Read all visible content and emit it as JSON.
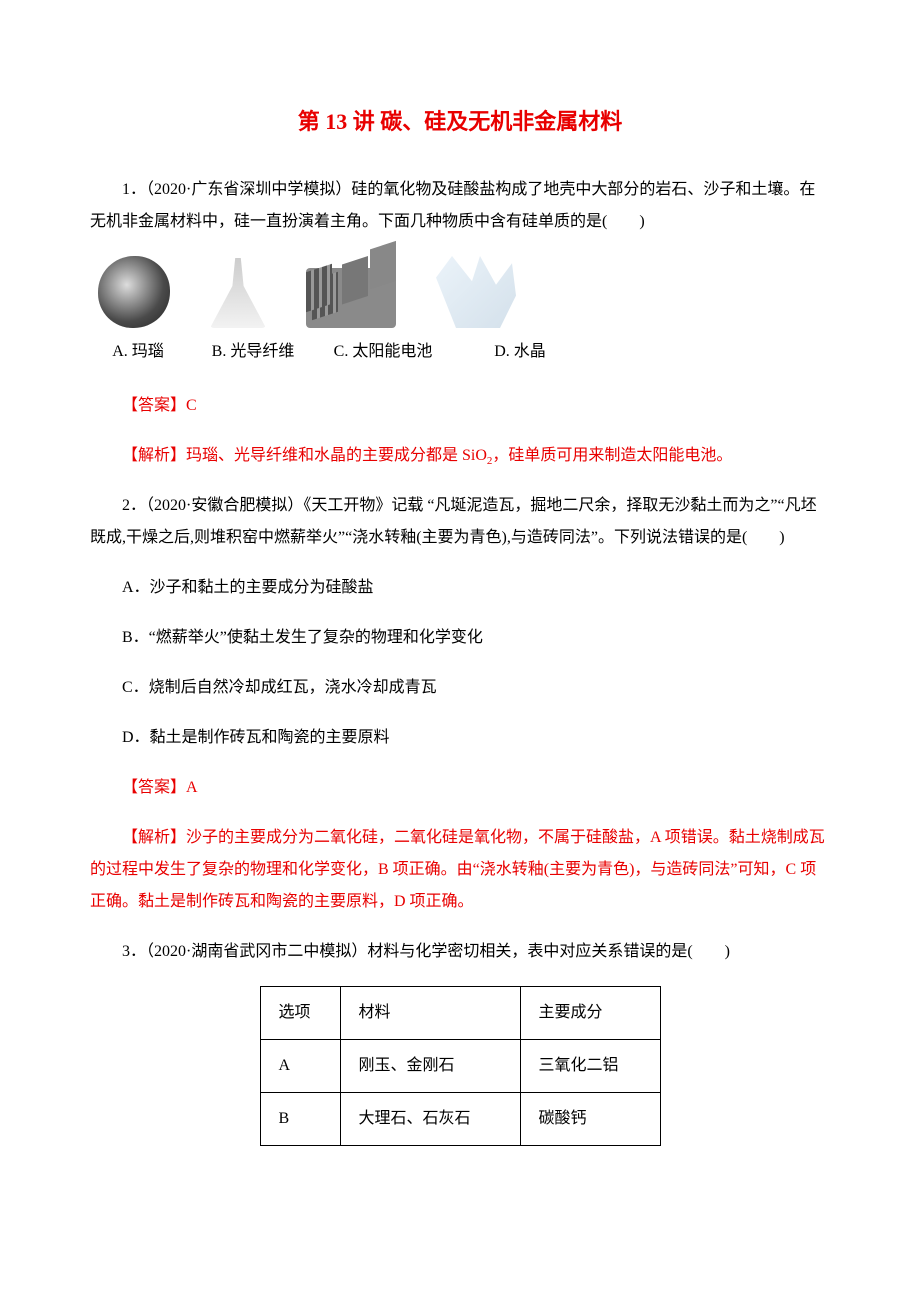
{
  "colors": {
    "red": "#e80000",
    "text": "#000000",
    "bg": "#ffffff",
    "border": "#000000"
  },
  "title": "第 13 讲 碳、硅及无机非金属材料",
  "q1": {
    "stem": "1．（2020·广东省深圳中学模拟）硅的氧化物及硅酸盐构成了地壳中大部分的岩石、沙子和土壤。在无机非金属材料中，硅一直扮演着主角。下面几种物质中含有硅单质的是(　　)",
    "labelA": "A. 玛瑙",
    "labelB": "B. 光导纤维",
    "labelC": "C. 太阳能电池",
    "labelD": "D. 水晶",
    "answerLabel": "【答案】",
    "answer": "C",
    "explainLabel": "【解析】",
    "explain_pre": "玛瑙、光导纤维和水晶的主要成分都是 SiO",
    "explain_post": "，硅单质可用来制造太阳能电池。"
  },
  "q2": {
    "stem": "2．（2020·安徽合肥模拟）《天工开物》记载 “凡埏泥造瓦，掘地二尺余，择取无沙黏土而为之”“凡坯既成,干燥之后,则堆积窑中燃薪举火”“浇水转釉(主要为青色),与造砖同法”。下列说法错误的是(　　)",
    "optA": "A．沙子和黏土的主要成分为硅酸盐",
    "optB": "B．“燃薪举火”使黏土发生了复杂的物理和化学变化",
    "optC": "C．烧制后自然冷却成红瓦，浇水冷却成青瓦",
    "optD": "D．黏土是制作砖瓦和陶瓷的主要原料",
    "answerLabel": "【答案】",
    "answer": "A",
    "explainLabel": "【解析】",
    "explain": "沙子的主要成分为二氧化硅，二氧化硅是氧化物，不属于硅酸盐，A 项错误。黏土烧制成瓦的过程中发生了复杂的物理和化学变化，B 项正确。由“浇水转釉(主要为青色)，与造砖同法”可知，C 项正确。黏土是制作砖瓦和陶瓷的主要原料，D 项正确。"
  },
  "q3": {
    "stem": "3．（2020·湖南省武冈市二中模拟）材料与化学密切相关，表中对应关系错误的是(　　)",
    "table": {
      "headers": [
        "选项",
        "材料",
        "主要成分"
      ],
      "rows": [
        [
          "A",
          "刚玉、金刚石",
          "三氧化二铝"
        ],
        [
          "B",
          "大理石、石灰石",
          "碳酸钙"
        ]
      ]
    }
  }
}
